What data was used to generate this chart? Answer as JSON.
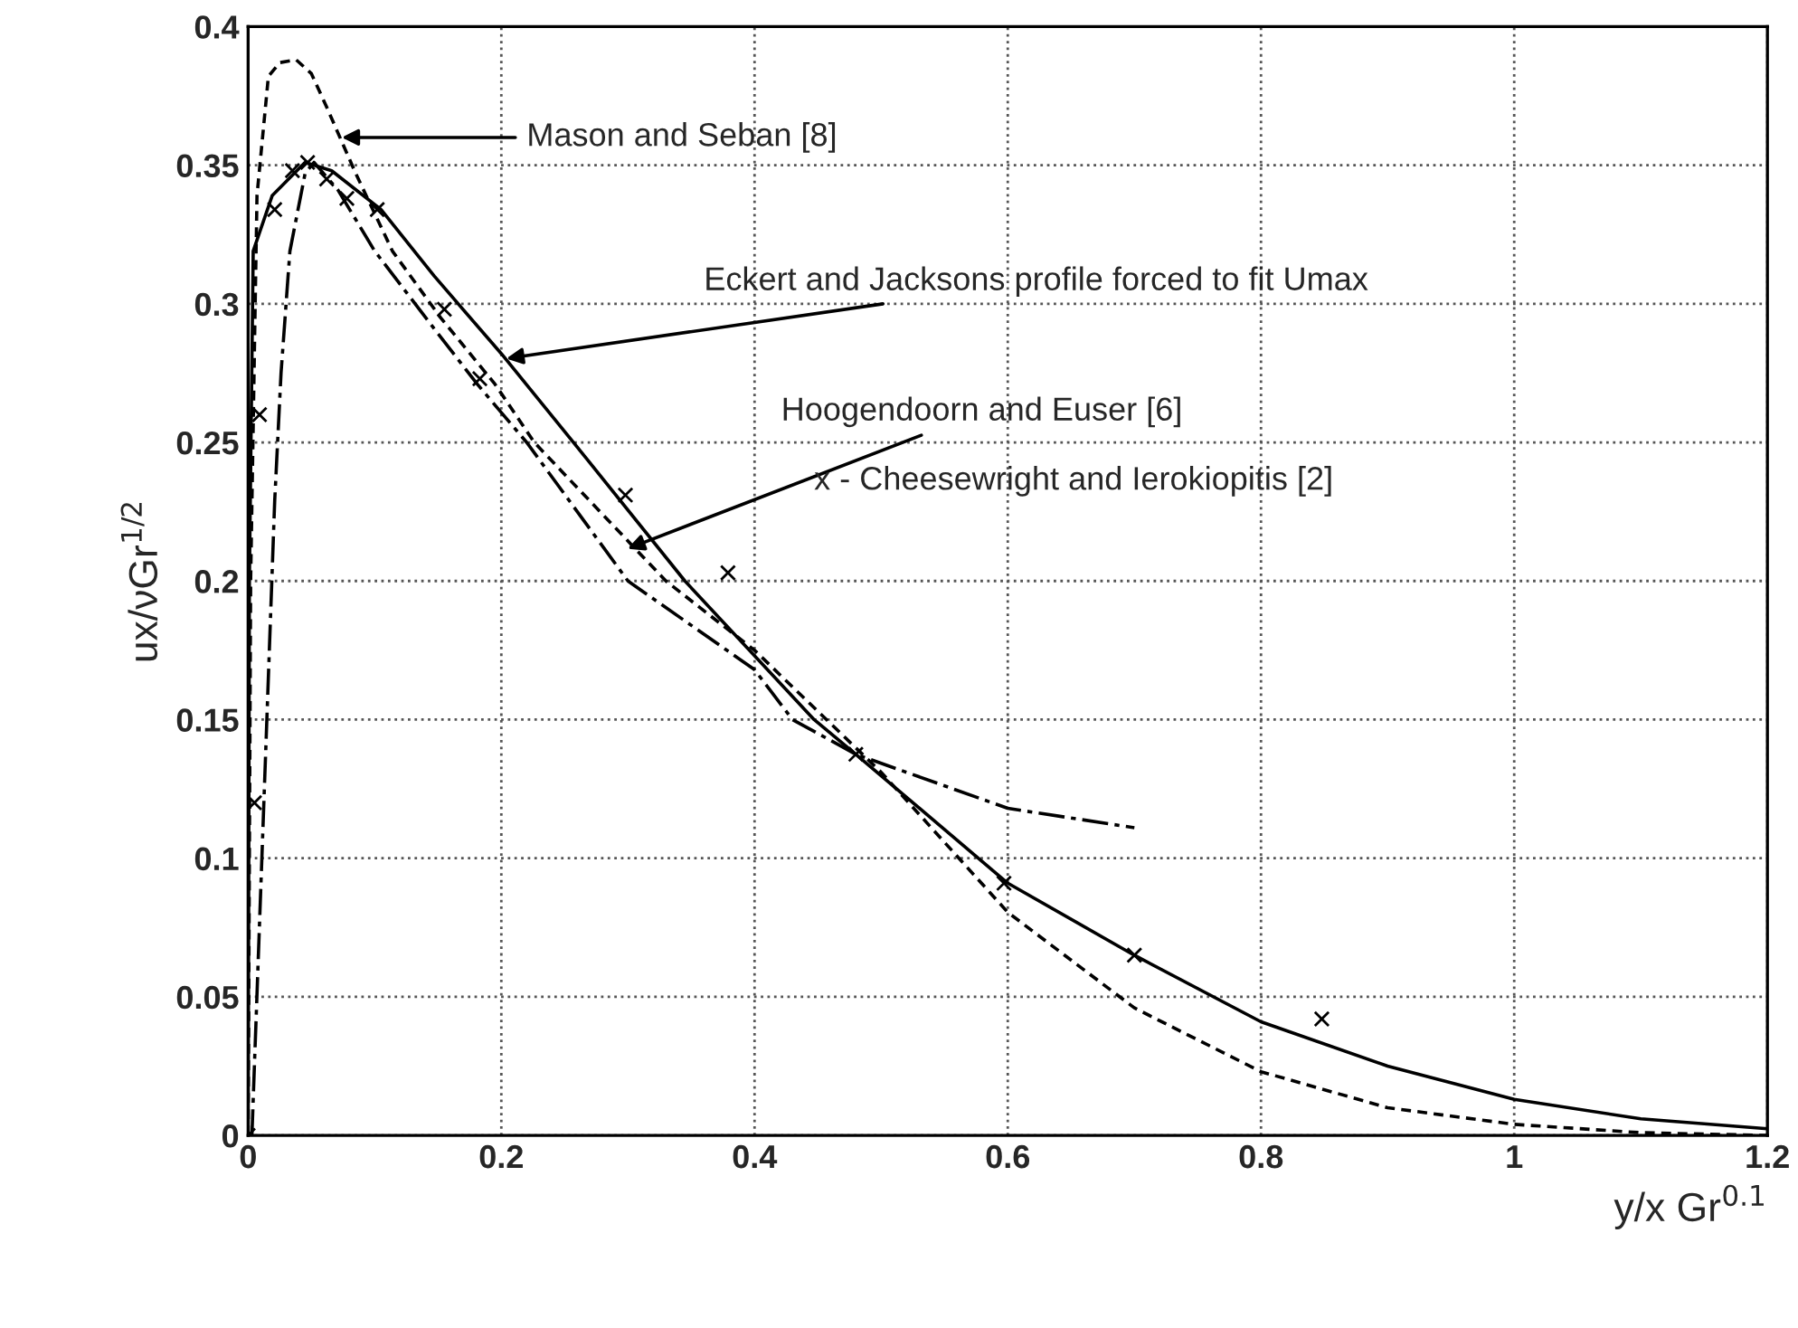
{
  "chart_data": {
    "type": "line",
    "xlabel": "y/x Gr$^{0.1}$",
    "ylabel": "ux/νGr$^{1/2}$",
    "xlim": [
      0,
      1.2
    ],
    "xticks": [
      0,
      0.2,
      0.4,
      0.6,
      0.8,
      1,
      1.2
    ],
    "ylim": [
      0,
      0.4
    ],
    "yticks": [
      0,
      0.05,
      0.1,
      0.15,
      0.2,
      0.25,
      0.3,
      0.35,
      0.4
    ],
    "grid": true,
    "marker": "none",
    "series": [
      {
        "color": "#000000",
        "line_style": "dashed",
        "x": [
          0,
          0.002,
          0.007,
          0.016,
          0.025,
          0.038,
          0.05,
          0.062,
          0.085,
          0.114,
          0.152,
          0.195,
          0.226,
          0.33,
          0.4,
          0.5,
          0.6,
          0.7,
          0.8,
          0.9,
          1.0,
          1.1,
          1.2
        ],
        "values": [
          0,
          0.2,
          0.339,
          0.382,
          0.387,
          0.388,
          0.383,
          0.371,
          0.347,
          0.319,
          0.295,
          0.271,
          0.25,
          0.2,
          0.175,
          0.131,
          0.0805,
          0.046,
          0.023,
          0.01,
          0.004,
          0.001,
          0
        ]
      },
      {
        "color": "#000000",
        "line_style": "solid",
        "x": [
          0,
          0.001,
          0.004,
          0.019,
          0.045,
          0.066,
          0.105,
          0.147,
          0.2,
          0.257,
          0.345,
          0.447,
          0.48,
          0.6,
          0.7,
          0.8,
          0.9,
          1.0,
          1.1,
          1.2
        ],
        "values": [
          0,
          0.2,
          0.319,
          0.339,
          0.351,
          0.348,
          0.334,
          0.31,
          0.282,
          0.25,
          0.2,
          0.15,
          0.1375,
          0.091,
          0.065,
          0.041,
          0.025,
          0.013,
          0.006,
          0.0024
        ]
      },
      {
        "color": "#000000",
        "line_style": "dashdot",
        "x": [
          0.003,
          0.021,
          0.026,
          0.033,
          0.045,
          0.052,
          0.071,
          0.1,
          0.147,
          0.181,
          0.22,
          0.3,
          0.4,
          0.43,
          0.48,
          0.6,
          0.7
        ],
        "values": [
          0,
          0.229,
          0.275,
          0.319,
          0.347,
          0.351,
          0.341,
          0.319,
          0.291,
          0.271,
          0.25,
          0.2,
          0.168,
          0.15,
          0.1375,
          0.118,
          0.111
        ]
      },
      {
        "type": "scatter",
        "color": "#000000",
        "marker": "cross",
        "x": [
          0,
          0.005,
          0.009,
          0.021,
          0.035,
          0.047,
          0.062,
          0.078,
          0.102,
          0.155,
          0.183,
          0.298,
          0.379,
          0.48,
          0.597,
          0.7,
          0.848
        ],
        "values": [
          0,
          0.12,
          0.26,
          0.334,
          0.348,
          0.351,
          0.345,
          0.338,
          0.334,
          0.298,
          0.273,
          0.231,
          0.203,
          0.1375,
          0.091,
          0.065,
          0.042
        ]
      }
    ],
    "annotations": [
      {
        "text": "Mason and Seban [8]",
        "x": 0.07,
        "y": 0.36
      },
      {
        "text": "Eckert and Jacksons profile forced to fit Umax",
        "x": 0.2,
        "y": 0.28
      },
      {
        "text": "Hoogendoorn and Euser [6]",
        "x": 0.296,
        "y": 0.211
      },
      "x - Cheesewright and Ierokiopitis [2]"
    ]
  }
}
